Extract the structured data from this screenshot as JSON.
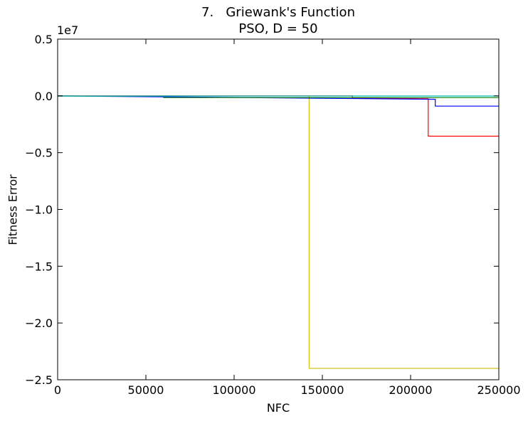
{
  "chart_data": {
    "type": "line",
    "title": "7.   Griewank's Function",
    "subtitle": "PSO, D = 50",
    "xlabel": "NFC",
    "ylabel": "Fitness Error",
    "y_offset_label": "1e7",
    "xlim": [
      0,
      250000
    ],
    "ylim": [
      -25000000,
      5000000
    ],
    "x_ticks": [
      0,
      50000,
      100000,
      150000,
      200000,
      250000
    ],
    "x_tick_labels": [
      "0",
      "50000",
      "100000",
      "150000",
      "200000",
      "250000"
    ],
    "y_ticks": [
      5000000,
      0,
      -5000000,
      -10000000,
      -15000000,
      -20000000,
      -25000000
    ],
    "y_tick_labels": [
      "0.5",
      "0.0",
      "−0.5",
      "−1.0",
      "−1.5",
      "−2.0",
      "−2.5"
    ],
    "grid": false,
    "series": [
      {
        "color": "#d4c11e",
        "x": [
          0,
          142500,
          142500,
          250000
        ],
        "y": [
          0,
          0,
          -24000000,
          -24000000
        ]
      },
      {
        "color": "#ff0000",
        "x": [
          0,
          167000,
          167000,
          210000,
          210000,
          250000
        ],
        "y": [
          0,
          0,
          -200000,
          -250000,
          -3550000,
          -3550000
        ]
      },
      {
        "color": "#0000ff",
        "x": [
          0,
          214000,
          214000,
          250000
        ],
        "y": [
          0,
          -300000,
          -900000,
          -900000
        ]
      },
      {
        "color": "#007f00",
        "x": [
          0,
          60000,
          60000,
          250000
        ],
        "y": [
          -20000,
          -20000,
          -150000,
          -150000
        ]
      },
      {
        "color": "#00bfbf",
        "x": [
          0,
          250000
        ],
        "y": [
          -10000,
          -10000
        ]
      }
    ]
  }
}
